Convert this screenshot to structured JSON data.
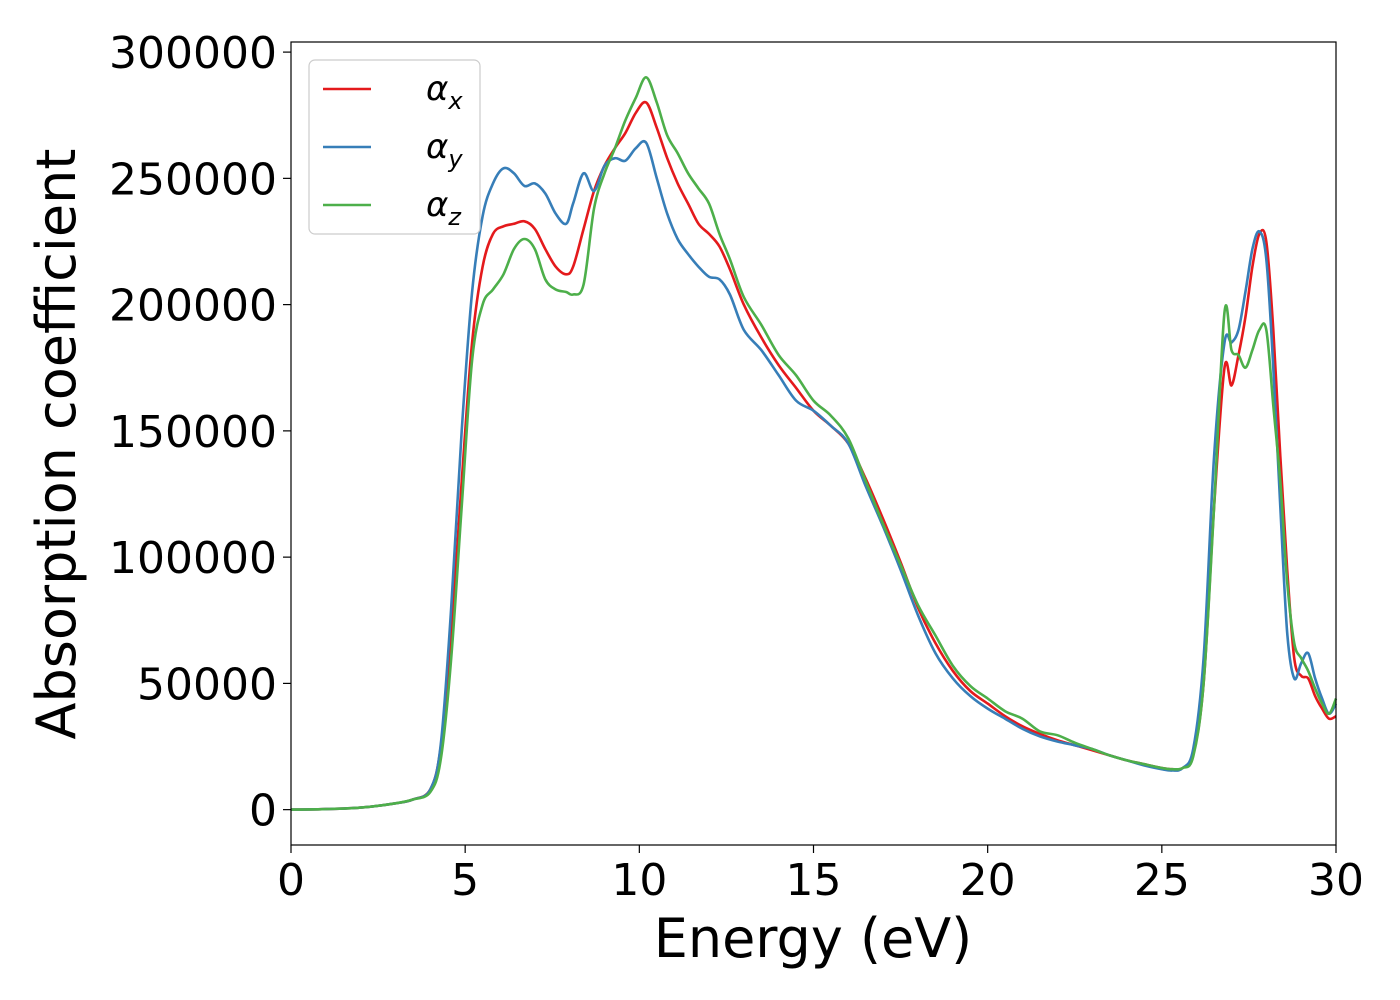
{
  "chart_data": {
    "type": "line",
    "xlabel": "Energy (eV)",
    "ylabel": "Absorption coefficient",
    "xlim": [
      0,
      30
    ],
    "ylim": [
      -14000,
      304000
    ],
    "xticks": [
      0,
      5,
      10,
      15,
      20,
      25,
      30
    ],
    "xtick_labels": [
      "0",
      "5",
      "10",
      "15",
      "20",
      "25",
      "30"
    ],
    "yticks": [
      0,
      50000,
      100000,
      150000,
      200000,
      250000,
      300000
    ],
    "ytick_labels": [
      "0",
      "50000",
      "100000",
      "150000",
      "200000",
      "250000",
      "300000"
    ],
    "grid": false,
    "legend_position": "top-left",
    "series": [
      {
        "name": "α_x",
        "label_base": "α",
        "label_sub": "x",
        "color": "#e41a1c",
        "x": [
          0,
          1,
          2,
          3,
          3.5,
          4,
          4.3,
          4.6,
          4.9,
          5.2,
          5.5,
          5.8,
          6.1,
          6.4,
          6.7,
          7.0,
          7.3,
          7.6,
          7.9,
          8.1,
          8.4,
          8.7,
          9.0,
          9.3,
          9.6,
          9.9,
          10.2,
          10.5,
          10.8,
          11.1,
          11.4,
          11.7,
          12.0,
          12.3,
          12.6,
          13.0,
          13.5,
          14.0,
          14.5,
          15.0,
          15.5,
          16.0,
          16.5,
          17.0,
          17.5,
          18.0,
          18.5,
          19.0,
          19.5,
          20.0,
          20.5,
          21.0,
          21.5,
          22.0,
          22.5,
          23.0,
          23.5,
          24.0,
          24.5,
          25.0,
          25.3,
          25.6,
          25.9,
          26.2,
          26.5,
          26.8,
          27.0,
          27.2,
          27.4,
          27.6,
          27.8,
          28.0,
          28.2,
          28.4,
          28.6,
          28.8,
          29.0,
          29.2,
          29.4,
          29.6,
          29.8,
          30.0
        ],
        "y": [
          0,
          200,
          800,
          2500,
          4000,
          8000,
          25000,
          70000,
          130000,
          185000,
          215000,
          228000,
          231000,
          232000,
          233000,
          230000,
          222000,
          215000,
          212000,
          215000,
          230000,
          245000,
          255000,
          262000,
          268000,
          276000,
          280000,
          270000,
          258000,
          248000,
          240000,
          232000,
          228000,
          223000,
          214000,
          200000,
          187000,
          176000,
          167000,
          158000,
          152000,
          145000,
          131000,
          115000,
          98000,
          80000,
          66000,
          55000,
          47000,
          42000,
          37000,
          33000,
          30000,
          27500,
          25500,
          23500,
          21500,
          19500,
          18000,
          16500,
          16000,
          16500,
          22000,
          50000,
          120000,
          175000,
          168000,
          180000,
          195000,
          215000,
          228000,
          225000,
          190000,
          140000,
          95000,
          60000,
          53000,
          52000,
          45000,
          40000,
          36000,
          37000
        ]
      },
      {
        "name": "α_y",
        "label_base": "α",
        "label_sub": "y",
        "color": "#377eb8",
        "x": [
          0,
          1,
          2,
          3,
          3.5,
          4,
          4.3,
          4.6,
          4.9,
          5.2,
          5.5,
          5.8,
          6.1,
          6.4,
          6.7,
          7.0,
          7.3,
          7.6,
          7.9,
          8.1,
          8.4,
          8.7,
          9.0,
          9.3,
          9.6,
          9.9,
          10.2,
          10.5,
          10.8,
          11.1,
          11.4,
          11.7,
          12.0,
          12.3,
          12.6,
          13.0,
          13.5,
          14.0,
          14.5,
          15.0,
          15.5,
          16.0,
          16.5,
          17.0,
          17.5,
          18.0,
          18.5,
          19.0,
          19.5,
          20.0,
          20.5,
          21.0,
          21.5,
          22.0,
          22.5,
          23.0,
          23.5,
          24.0,
          24.5,
          25.0,
          25.3,
          25.6,
          25.9,
          26.2,
          26.5,
          26.8,
          27.0,
          27.2,
          27.4,
          27.6,
          27.8,
          28.0,
          28.2,
          28.4,
          28.6,
          28.8,
          29.0,
          29.2,
          29.4,
          29.6,
          29.8,
          30.0
        ],
        "y": [
          0,
          200,
          800,
          2500,
          4000,
          8000,
          26000,
          80000,
          150000,
          205000,
          235000,
          248000,
          254000,
          252000,
          247000,
          248000,
          244000,
          236000,
          232000,
          240000,
          252000,
          245000,
          255000,
          258000,
          257000,
          262000,
          264000,
          250000,
          236000,
          226000,
          220000,
          215000,
          211000,
          210000,
          204000,
          190000,
          182000,
          172000,
          162000,
          158000,
          152000,
          145000,
          128000,
          112000,
          95000,
          77000,
          62000,
          52000,
          45000,
          40000,
          36000,
          32000,
          29000,
          27000,
          25500,
          24000,
          21500,
          19500,
          17500,
          16000,
          15500,
          16500,
          24000,
          60000,
          140000,
          185000,
          185000,
          190000,
          205000,
          222000,
          229000,
          218000,
          175000,
          120000,
          70000,
          52000,
          58000,
          62000,
          52000,
          44000,
          38000,
          42000
        ]
      },
      {
        "name": "α_z",
        "label_base": "α",
        "label_sub": "z",
        "color": "#4daf4a",
        "x": [
          0,
          1,
          2,
          3,
          3.5,
          4,
          4.3,
          4.6,
          4.9,
          5.2,
          5.5,
          5.8,
          6.1,
          6.4,
          6.7,
          7.0,
          7.3,
          7.6,
          7.9,
          8.1,
          8.4,
          8.7,
          9.0,
          9.3,
          9.6,
          9.9,
          10.2,
          10.5,
          10.8,
          11.1,
          11.4,
          11.7,
          12.0,
          12.3,
          12.6,
          13.0,
          13.5,
          14.0,
          14.5,
          15.0,
          15.5,
          16.0,
          16.5,
          17.0,
          17.5,
          18.0,
          18.5,
          19.0,
          19.5,
          20.0,
          20.5,
          21.0,
          21.5,
          22.0,
          22.5,
          23.0,
          23.5,
          24.0,
          24.5,
          25.0,
          25.3,
          25.6,
          25.9,
          26.2,
          26.5,
          26.8,
          27.0,
          27.2,
          27.4,
          27.6,
          27.8,
          28.0,
          28.2,
          28.4,
          28.6,
          28.8,
          29.0,
          29.2,
          29.4,
          29.6,
          29.8,
          30.0
        ],
        "y": [
          0,
          200,
          800,
          2500,
          4000,
          7000,
          20000,
          60000,
          120000,
          178000,
          200000,
          206000,
          212000,
          222000,
          226000,
          222000,
          210000,
          206000,
          205000,
          204000,
          208000,
          238000,
          252000,
          262000,
          273000,
          282000,
          290000,
          280000,
          267000,
          260000,
          252000,
          246000,
          240000,
          228000,
          218000,
          203000,
          192000,
          180000,
          172000,
          162000,
          156000,
          147000,
          130000,
          113000,
          97000,
          81000,
          69000,
          57000,
          49000,
          44000,
          39000,
          36000,
          31000,
          29500,
          26500,
          24000,
          21500,
          19500,
          18000,
          16500,
          16000,
          16500,
          21000,
          50000,
          120000,
          197000,
          182000,
          180000,
          175000,
          182000,
          190000,
          190000,
          160000,
          130000,
          90000,
          66000,
          60000,
          55000,
          48000,
          42000,
          38000,
          44000
        ]
      }
    ]
  }
}
